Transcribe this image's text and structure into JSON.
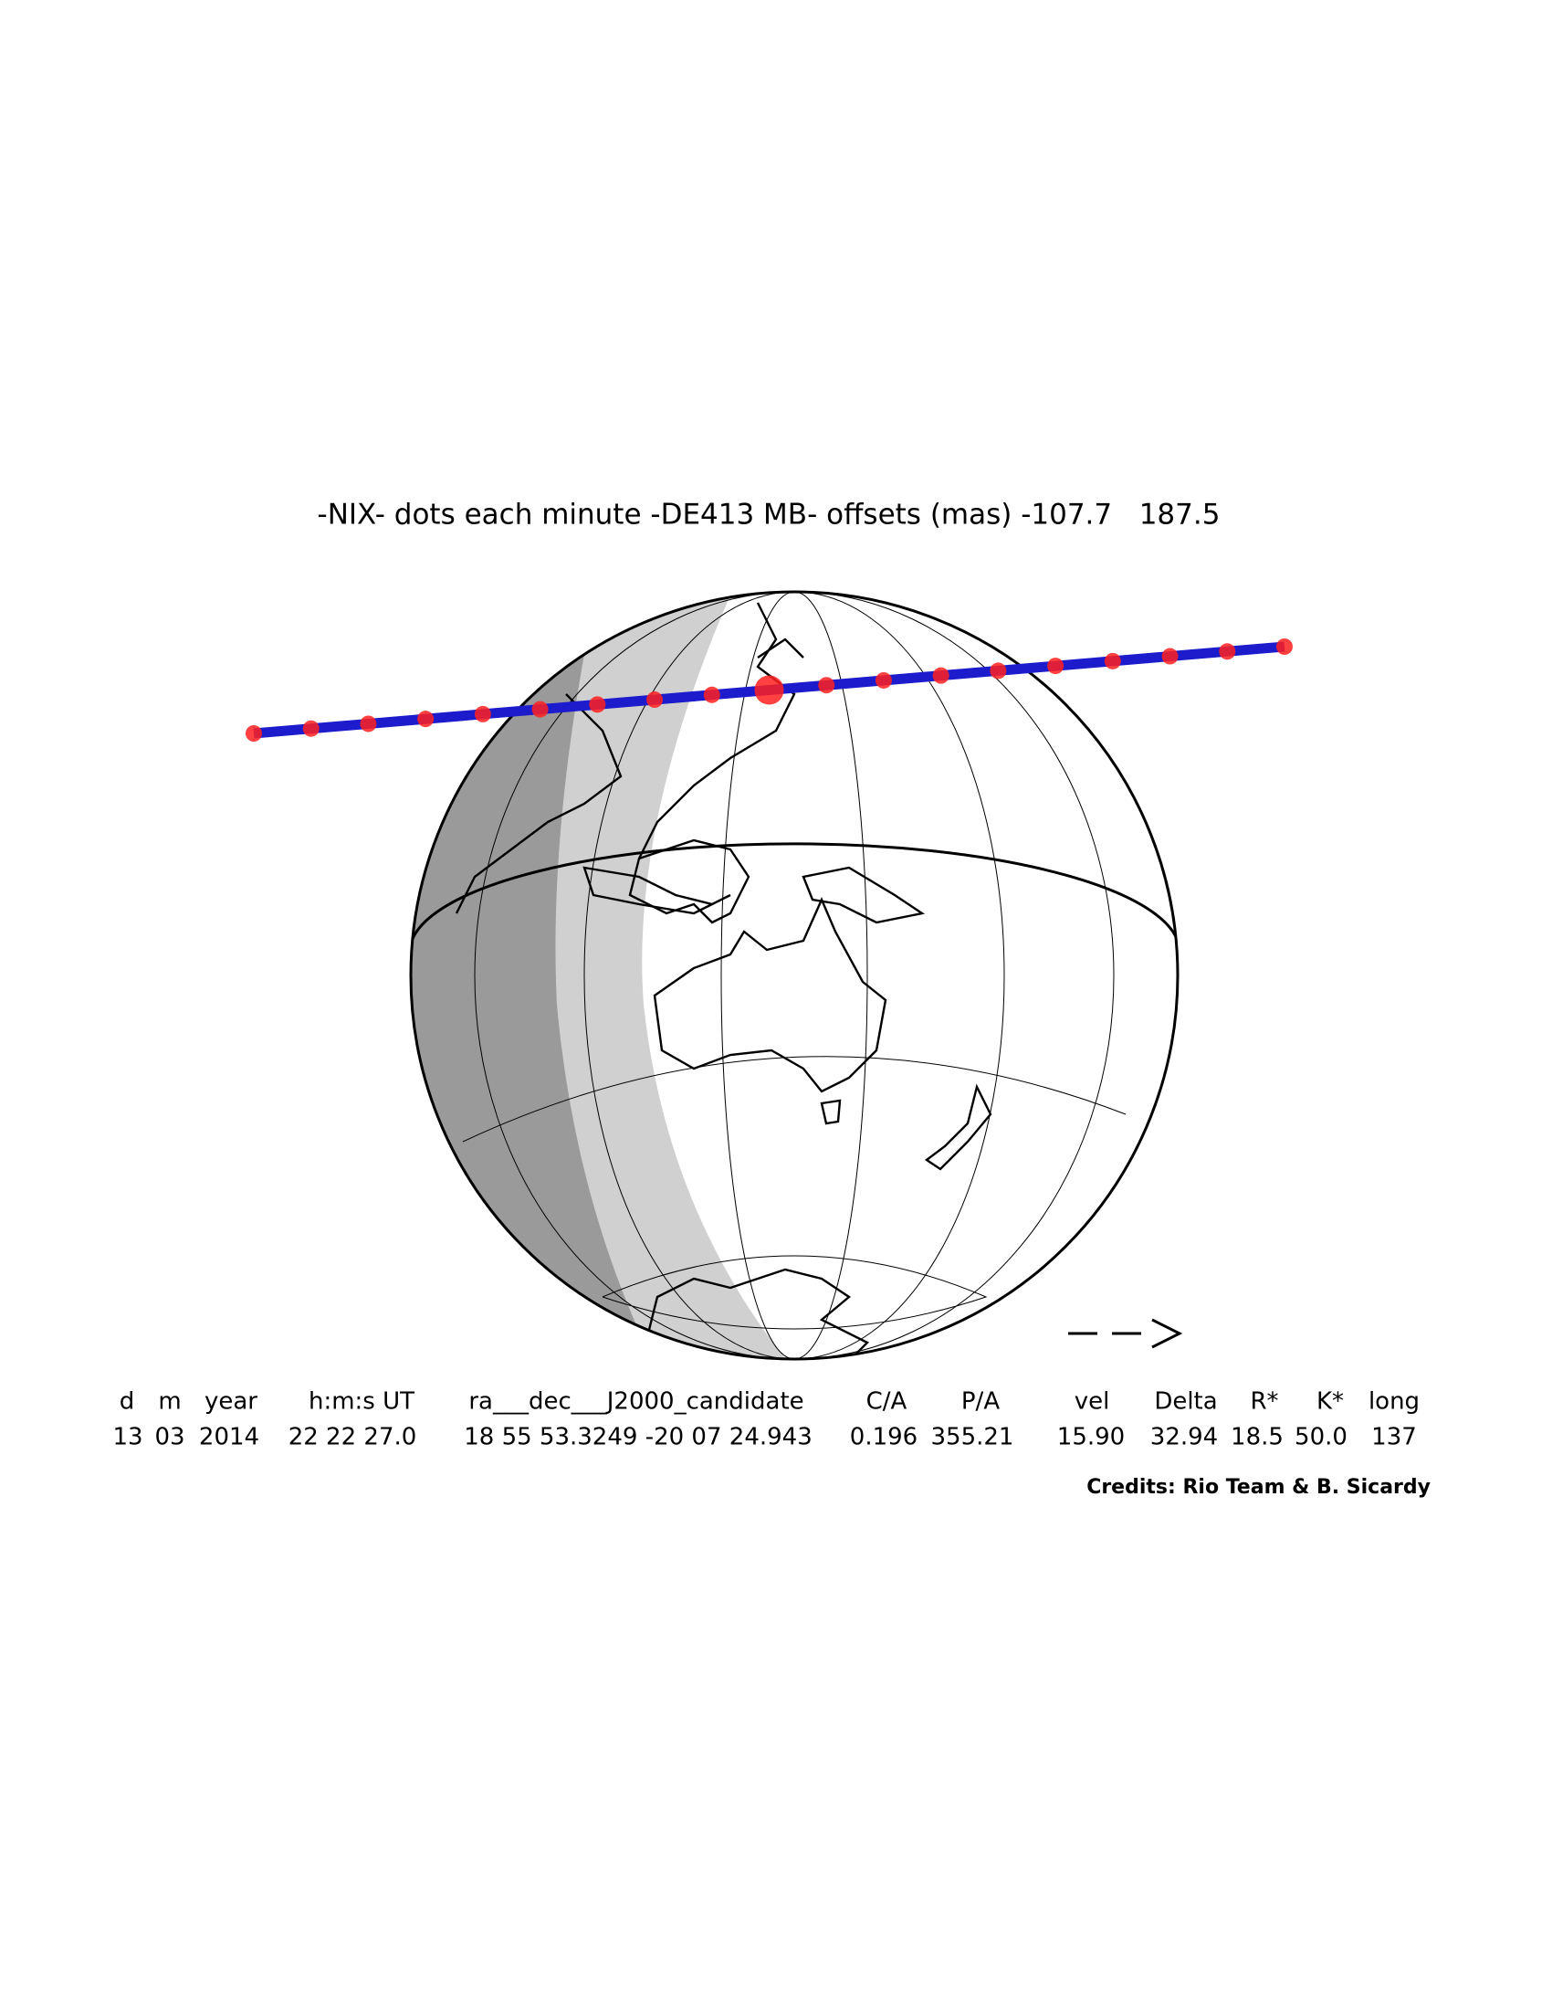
{
  "title": "-NIX- dots each minute -DE413 MB- offsets (mas) -107.7   187.5",
  "table": {
    "headers": [
      "d",
      "m",
      "year",
      "h:m:s UT",
      "ra___dec___J2000_candidate",
      "C/A",
      "P/A",
      "vel",
      "Delta",
      "R*",
      "K*",
      "long"
    ],
    "values": [
      "13",
      "03",
      "2014",
      "22 22 27.0",
      "18 55 53.3249 -20 07 24.943",
      "0.196",
      "355.21",
      "15.90",
      "32.94",
      "18.5",
      "50.0",
      "137"
    ]
  },
  "credits": "Credits: Rio Team & B. Sicardy"
}
